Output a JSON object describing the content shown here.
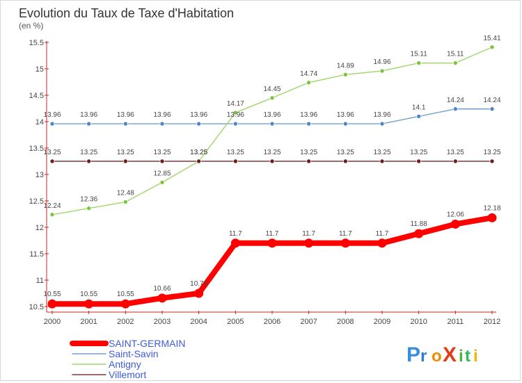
{
  "chart_data": {
    "type": "line",
    "title": "Evolution du Taux de Taxe d'Habitation",
    "subtitle": "(en %)",
    "x": [
      "2000",
      "2001",
      "2002",
      "2003",
      "2004",
      "2005",
      "2006",
      "2007",
      "2008",
      "2009",
      "2010",
      "2011",
      "2012"
    ],
    "ylim": [
      10.5,
      15.5
    ],
    "yticks": [
      "10.5",
      "11",
      "11.5",
      "12",
      "12.5",
      "13",
      "13.5",
      "14",
      "14.5",
      "15",
      "15.5"
    ],
    "grid": false,
    "legend_position": "bottom-left",
    "series": [
      {
        "name": "SAINT-GERMAIN",
        "values": [
          10.55,
          10.55,
          10.55,
          10.66,
          10.75,
          11.7,
          11.7,
          11.7,
          11.7,
          11.7,
          11.88,
          12.06,
          12.18
        ],
        "labels": [
          "10.55",
          "10.55",
          "10.55",
          "10.66",
          "10.75",
          "11.7",
          "11.7",
          "11.7",
          "11.7",
          "11.7",
          "11.88",
          "12.06",
          "12.18"
        ],
        "color": "#ff0000"
      },
      {
        "name": "Saint-Savin",
        "values": [
          13.96,
          13.96,
          13.96,
          13.96,
          13.96,
          13.96,
          13.96,
          13.96,
          13.96,
          13.96,
          14.1,
          14.24,
          14.24
        ],
        "labels": [
          "13.96",
          "13.96",
          "13.96",
          "13.96",
          "13.96",
          "13.96",
          "13.96",
          "13.96",
          "13.96",
          "13.96",
          "14.1",
          "14.24",
          "14.24"
        ],
        "color": "#6f9fcf"
      },
      {
        "name": "Antigny",
        "values": [
          12.24,
          12.36,
          12.48,
          12.85,
          13.25,
          14.17,
          14.45,
          14.74,
          14.89,
          14.96,
          15.11,
          15.11,
          15.41
        ],
        "labels": [
          "12.24",
          "12.36",
          "12.48",
          "12.85",
          "13.25",
          "14.17",
          "14.45",
          "14.74",
          "14.89",
          "14.96",
          "15.11",
          "15.11",
          "15.41"
        ],
        "color": "#9ed66a"
      },
      {
        "name": "Villemort",
        "values": [
          13.25,
          13.25,
          13.25,
          13.25,
          13.25,
          13.25,
          13.25,
          13.25,
          13.25,
          13.25,
          13.25,
          13.25,
          13.25
        ],
        "labels": [
          "13.25",
          "13.25",
          "13.25",
          "13.25",
          "13.25",
          "13.25",
          "13.25",
          "13.25",
          "13.25",
          "13.25",
          "13.25",
          "13.25",
          "13.25"
        ],
        "color": "#7a3b3b"
      }
    ]
  },
  "branding": {
    "logo_text": "Proxiti"
  }
}
